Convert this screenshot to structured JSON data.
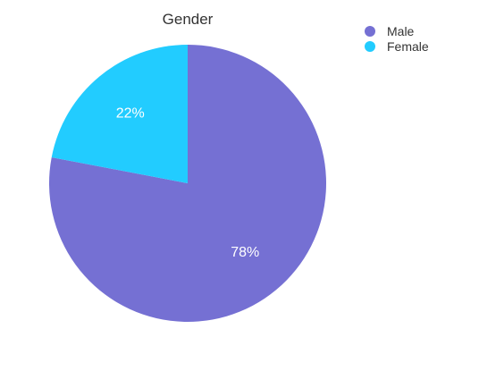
{
  "chart_data": {
    "type": "pie",
    "title": "Gender",
    "legend_position": "top-right",
    "slices": [
      {
        "label": "Male",
        "value": 78,
        "display": "78%",
        "color": "#7570D3"
      },
      {
        "label": "Female",
        "value": 22,
        "display": "22%",
        "color": "#22CCFF"
      }
    ]
  }
}
